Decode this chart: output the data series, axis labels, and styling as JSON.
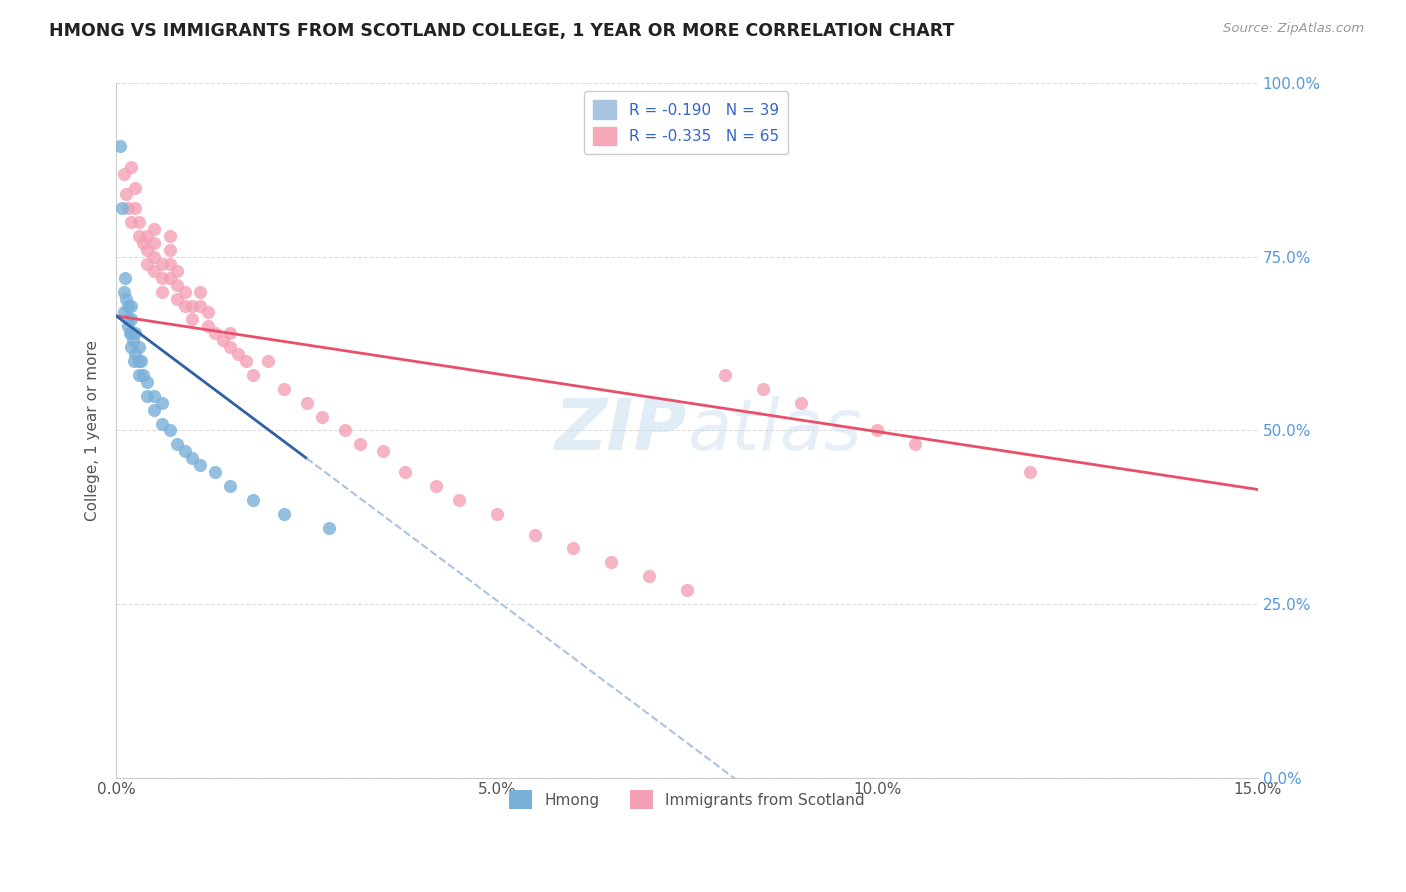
{
  "title": "HMONG VS IMMIGRANTS FROM SCOTLAND COLLEGE, 1 YEAR OR MORE CORRELATION CHART",
  "source": "Source: ZipAtlas.com",
  "ylabel": "College, 1 year or more",
  "xmin": 0.0,
  "xmax": 0.15,
  "ymin": 0.0,
  "ymax": 1.0,
  "xticks": [
    0.0,
    0.05,
    0.1,
    0.15
  ],
  "xtick_labels": [
    "0.0%",
    "5.0%",
    "10.0%",
    "15.0%"
  ],
  "yticks": [
    0.0,
    0.25,
    0.5,
    0.75,
    1.0
  ],
  "ytick_labels": [
    "0.0%",
    "25.0%",
    "50.0%",
    "75.0%",
    "100.0%"
  ],
  "hmong_color": "#7ab0d8",
  "scotland_color": "#f4a0b4",
  "hmong_line_color": "#3060a8",
  "scotland_line_color": "#e8506a",
  "hmong_dashed_color": "#aac4e0",
  "watermark_zip": "ZIP",
  "watermark_atlas": "atlas",
  "hmong_x": [
    0.0005,
    0.0008,
    0.001,
    0.001,
    0.0012,
    0.0013,
    0.0015,
    0.0015,
    0.0016,
    0.0018,
    0.002,
    0.002,
    0.002,
    0.002,
    0.0022,
    0.0023,
    0.0025,
    0.0025,
    0.003,
    0.003,
    0.003,
    0.0032,
    0.0035,
    0.004,
    0.004,
    0.005,
    0.005,
    0.006,
    0.006,
    0.007,
    0.008,
    0.009,
    0.01,
    0.011,
    0.013,
    0.015,
    0.018,
    0.022,
    0.028
  ],
  "hmong_y": [
    0.91,
    0.82,
    0.7,
    0.67,
    0.72,
    0.69,
    0.65,
    0.68,
    0.66,
    0.64,
    0.68,
    0.66,
    0.64,
    0.62,
    0.63,
    0.6,
    0.64,
    0.61,
    0.62,
    0.6,
    0.58,
    0.6,
    0.58,
    0.57,
    0.55,
    0.55,
    0.53,
    0.54,
    0.51,
    0.5,
    0.48,
    0.47,
    0.46,
    0.45,
    0.44,
    0.42,
    0.4,
    0.38,
    0.36
  ],
  "scotland_x": [
    0.001,
    0.0013,
    0.0015,
    0.002,
    0.002,
    0.0025,
    0.0025,
    0.003,
    0.003,
    0.0035,
    0.004,
    0.004,
    0.004,
    0.005,
    0.005,
    0.005,
    0.005,
    0.006,
    0.006,
    0.006,
    0.007,
    0.007,
    0.007,
    0.007,
    0.008,
    0.008,
    0.008,
    0.009,
    0.009,
    0.01,
    0.01,
    0.011,
    0.011,
    0.012,
    0.012,
    0.013,
    0.014,
    0.015,
    0.015,
    0.016,
    0.017,
    0.018,
    0.02,
    0.022,
    0.025,
    0.027,
    0.03,
    0.032,
    0.035,
    0.038,
    0.042,
    0.045,
    0.05,
    0.055,
    0.06,
    0.065,
    0.07,
    0.075,
    0.08,
    0.085,
    0.09,
    0.1,
    0.105,
    0.12
  ],
  "scotland_y": [
    0.87,
    0.84,
    0.82,
    0.88,
    0.8,
    0.85,
    0.82,
    0.8,
    0.78,
    0.77,
    0.78,
    0.76,
    0.74,
    0.79,
    0.77,
    0.75,
    0.73,
    0.74,
    0.72,
    0.7,
    0.78,
    0.76,
    0.74,
    0.72,
    0.73,
    0.71,
    0.69,
    0.7,
    0.68,
    0.68,
    0.66,
    0.7,
    0.68,
    0.67,
    0.65,
    0.64,
    0.63,
    0.64,
    0.62,
    0.61,
    0.6,
    0.58,
    0.6,
    0.56,
    0.54,
    0.52,
    0.5,
    0.48,
    0.47,
    0.44,
    0.42,
    0.4,
    0.38,
    0.35,
    0.33,
    0.31,
    0.29,
    0.27,
    0.58,
    0.56,
    0.54,
    0.5,
    0.48,
    0.44
  ]
}
